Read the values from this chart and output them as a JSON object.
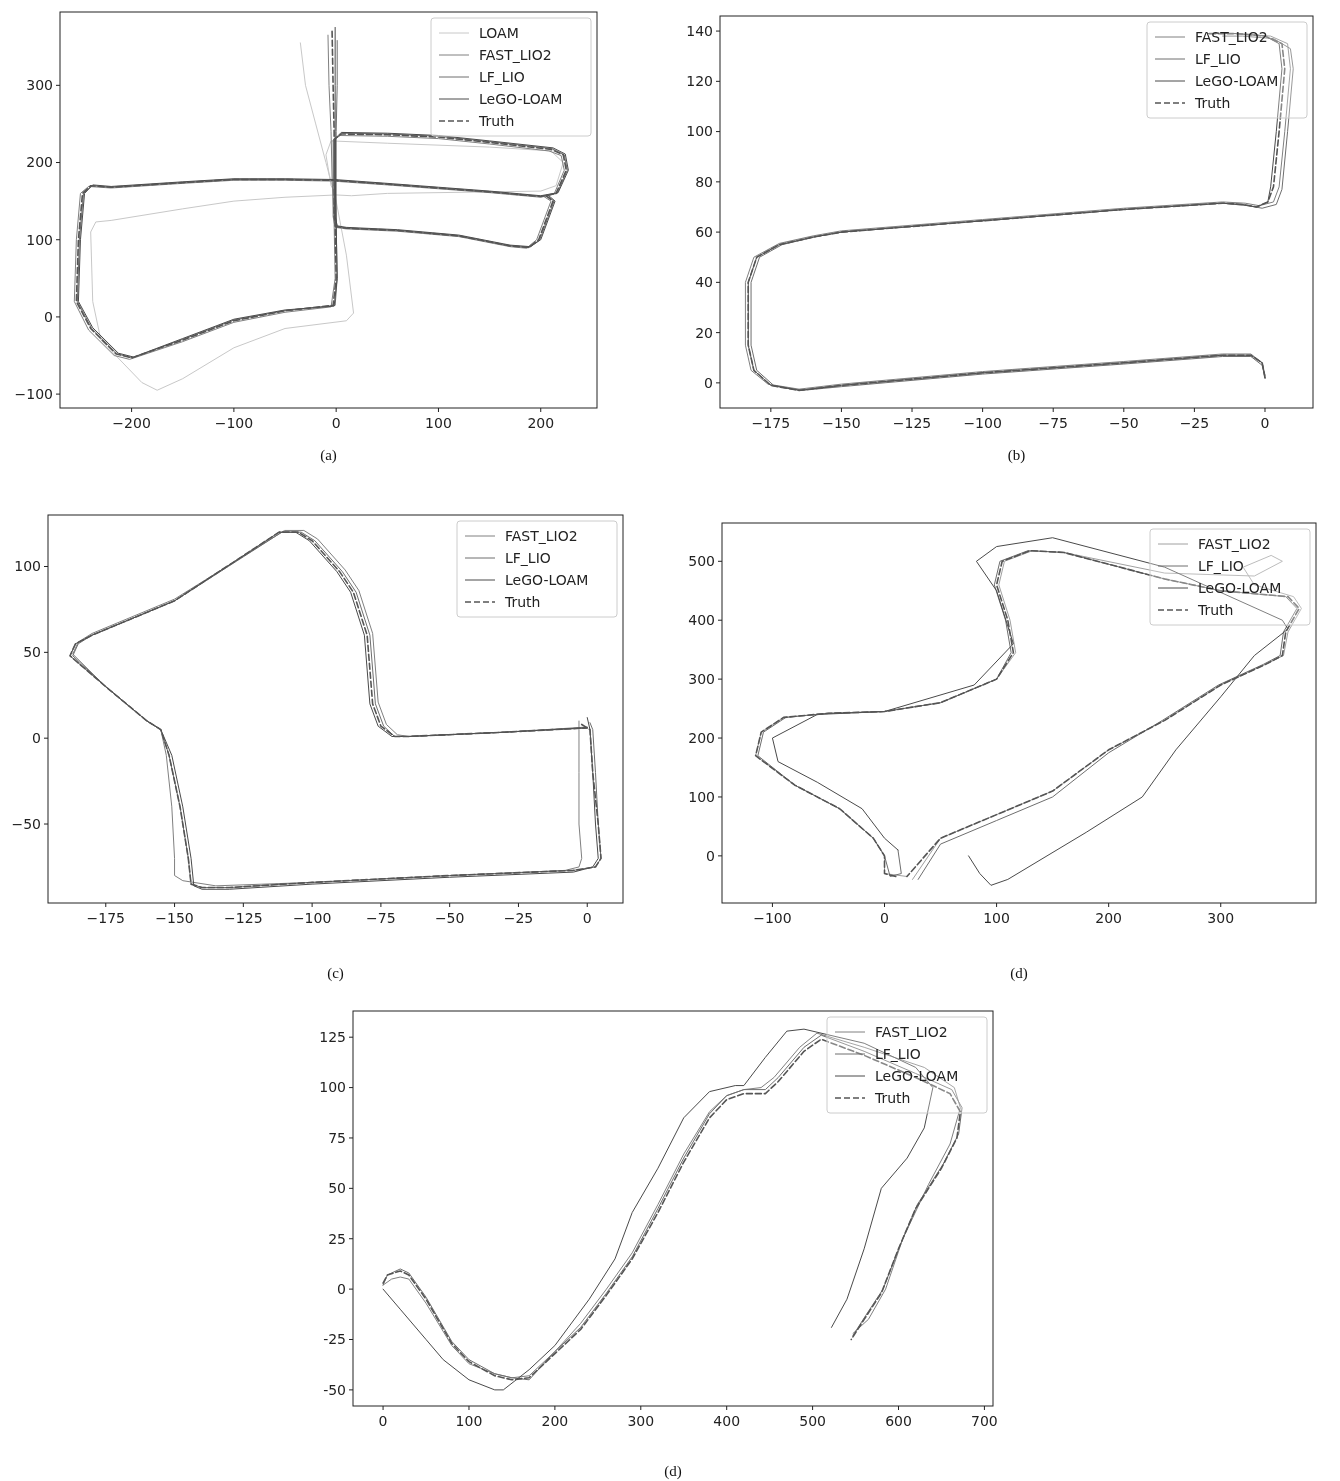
{
  "chart_data": [
    {
      "type": "line",
      "annotations": [
        "(a)"
      ],
      "legend": "top right",
      "xlim": [
        -270,
        255
      ],
      "ylim": [
        -118,
        395
      ],
      "xticks": [
        {
          "value": -200,
          "label": "−200"
        },
        {
          "value": -100,
          "label": "−100"
        },
        0,
        100,
        200
      ],
      "yticks": [
        {
          "value": -100,
          "label": "−100"
        },
        0,
        100,
        200,
        300
      ],
      "series": [
        {
          "name": "LOAM",
          "color": "#c8c8c8",
          "x": [
            -35,
            -30,
            -20,
            -10,
            0,
            10,
            17,
            10,
            -50,
            -100,
            -150,
            -175,
            -190,
            -230,
            -238,
            -240,
            -235,
            -220,
            -150,
            -100,
            -50,
            0,
            15,
            50,
            150,
            200,
            215,
            222,
            210,
            150,
            50,
            -5,
            -10,
            -5,
            0
          ],
          "values": [
            355,
            300,
            250,
            200,
            150,
            80,
            5,
            -5,
            -15,
            -40,
            -80,
            -95,
            -85,
            -30,
            20,
            110,
            123,
            125,
            140,
            150,
            155,
            158,
            157,
            160,
            162,
            163,
            170,
            200,
            215,
            220,
            225,
            228,
            210,
            170,
            158
          ]
        },
        {
          "name": "FAST_LIO2",
          "color": "#808080",
          "x": [
            -8,
            -7,
            -5,
            -4,
            -2,
            -1,
            -5,
            -50,
            -100,
            -150,
            -202,
            -217,
            -242,
            -256,
            -254,
            -250,
            -242,
            -220,
            -150,
            -100,
            -50,
            -4,
            50,
            100,
            150,
            200,
            213,
            223,
            220,
            208,
            150,
            100,
            50,
            4,
            -3,
            -3,
            -1,
            10,
            60,
            120,
            170,
            186,
            196,
            210,
            203
          ],
          "values": [
            365,
            300,
            240,
            180,
            120,
            50,
            13,
            6,
            -7,
            -32,
            -55,
            -50,
            -17,
            20,
            100,
            160,
            169,
            167,
            173,
            177,
            177,
            176,
            171,
            166,
            161,
            155,
            159,
            190,
            209,
            215,
            224,
            231,
            234,
            235,
            229,
            130,
            116,
            114,
            111,
            104,
            91,
            89,
            100,
            150,
            156
          ]
        },
        {
          "name": "LF_LIO",
          "color": "#6e6e6e",
          "x": [
            1,
            1,
            0,
            0,
            0,
            1,
            -1,
            -50,
            -100,
            -150,
            -199,
            -214,
            -239,
            -253,
            -251,
            -247,
            -239,
            -220,
            -150,
            -100,
            -50,
            -2,
            50,
            100,
            150,
            200,
            216,
            226,
            223,
            211,
            150,
            100,
            50,
            6,
            -1,
            -1,
            1,
            10,
            60,
            120,
            170,
            189,
            199,
            213,
            206
          ],
          "values": [
            358,
            300,
            240,
            180,
            120,
            50,
            15,
            8,
            -4,
            -29,
            -53,
            -48,
            -15,
            20,
            100,
            160,
            170,
            168,
            174,
            178,
            178,
            177,
            172,
            167,
            162,
            156,
            160,
            190,
            210,
            218,
            227,
            234,
            237,
            238,
            230,
            130,
            117,
            115,
            112,
            105,
            92,
            90,
            100,
            150,
            157
          ]
        },
        {
          "name": "LeGO-LOAM",
          "color": "#4a4a4a",
          "x": [
            -1,
            -1,
            -1,
            -1,
            0,
            1,
            -2,
            -50,
            -100,
            -150,
            -198,
            -213,
            -238,
            -252,
            -250,
            -246,
            -238,
            -220,
            -150,
            -100,
            -50,
            -2,
            50,
            100,
            150,
            200,
            217,
            227,
            224,
            212,
            150,
            100,
            50,
            5,
            -1,
            -1,
            1,
            10,
            60,
            120,
            170,
            190,
            200,
            214,
            207
          ],
          "values": [
            375,
            300,
            240,
            180,
            120,
            50,
            14,
            9,
            -3,
            -28,
            -52,
            -47,
            -14,
            20,
            100,
            160,
            171,
            169,
            175,
            179,
            179,
            178,
            173,
            168,
            163,
            157,
            161,
            190,
            211,
            219,
            228,
            235,
            238,
            239,
            231,
            130,
            118,
            116,
            113,
            106,
            93,
            91,
            100,
            150,
            158
          ]
        },
        {
          "name": "Truth",
          "color": "#555555",
          "line_style": "dashed",
          "x": [
            -4,
            -3,
            -2,
            -2,
            -1,
            0,
            -3,
            -50,
            -100,
            -150,
            -200,
            -215,
            -240,
            -254,
            -252,
            -248,
            -240,
            -220,
            -150,
            -100,
            -50,
            -3,
            50,
            100,
            150,
            200,
            215,
            225,
            222,
            210,
            150,
            100,
            50,
            5,
            -2,
            -2,
            0,
            10,
            60,
            120,
            170,
            188,
            198,
            212,
            205
          ],
          "values": [
            370,
            300,
            240,
            180,
            120,
            50,
            15,
            8,
            -5,
            -30,
            -53,
            -48,
            -15,
            20,
            100,
            160,
            170,
            168,
            174,
            178,
            178,
            177,
            172,
            167,
            162,
            156,
            160,
            190,
            210,
            217,
            226,
            233,
            236,
            237,
            230,
            130,
            117,
            115,
            112,
            105,
            92,
            90,
            100,
            150,
            157
          ]
        }
      ]
    },
    {
      "type": "line",
      "annotations": [
        "(b)"
      ],
      "legend": "top right",
      "xlim": [
        -193,
        17
      ],
      "ylim": [
        -10,
        146
      ],
      "xticks": [
        {
          "value": -175,
          "label": "−175"
        },
        {
          "value": -150,
          "label": "−150"
        },
        {
          "value": -125,
          "label": "−125"
        },
        {
          "value": -100,
          "label": "−100"
        },
        {
          "value": -75,
          "label": "−75"
        },
        {
          "value": -50,
          "label": "−50"
        },
        {
          "value": -25,
          "label": "−25"
        },
        0
      ],
      "yticks": [
        0,
        20,
        40,
        60,
        80,
        100,
        120,
        140
      ],
      "series": [
        {
          "name": "FAST_LIO2",
          "color": "#808080",
          "x": [
            0,
            -1,
            -5,
            -15,
            -50,
            -100,
            -150,
            -165,
            -176,
            -182,
            -184,
            -184,
            -181,
            -172,
            -160,
            -150,
            -100,
            -50,
            -15,
            -7,
            -2,
            3,
            5,
            7,
            9,
            8,
            2,
            -10,
            -20
          ],
          "values": [
            2,
            8,
            11.5,
            11.5,
            8.5,
            4.5,
            -0.5,
            -2.5,
            -0.5,
            5,
            15,
            40,
            50,
            55.5,
            58.5,
            60.5,
            65,
            69.5,
            72,
            71.5,
            70.5,
            72,
            78,
            100,
            125,
            135,
            138,
            139,
            139
          ]
        },
        {
          "name": "LF_LIO",
          "color": "#6e6e6e",
          "x": [
            0,
            -1,
            -5,
            -15,
            -50,
            -100,
            -150,
            -164,
            -174,
            -180,
            -182,
            -182,
            -179,
            -171,
            -160,
            -150,
            -100,
            -50,
            -15,
            -6,
            -1,
            4,
            6,
            8,
            10,
            9,
            3,
            -8,
            -15
          ],
          "values": [
            2,
            7,
            10.5,
            10.5,
            7.5,
            3.5,
            -1.5,
            -3,
            -1,
            5,
            15,
            40,
            50,
            55,
            58,
            60,
            64.5,
            69,
            71.5,
            70.5,
            69.5,
            71,
            77,
            100,
            125,
            133,
            137,
            138,
            138
          ]
        },
        {
          "name": "LeGO-LOAM",
          "color": "#4a4a4a",
          "x": [
            0,
            -1,
            -5,
            -15,
            -50,
            -100,
            -150,
            -165,
            -175,
            -181,
            -183,
            -183,
            -180,
            -172,
            -160,
            -150,
            -100,
            -50,
            -15,
            -8,
            -3,
            1,
            2,
            4,
            6,
            5,
            0,
            -10,
            -20
          ],
          "values": [
            3,
            8,
            11,
            11,
            8,
            4,
            -1,
            -3,
            -1,
            5,
            15,
            40,
            50,
            55,
            58,
            60,
            64.5,
            69,
            71.5,
            71,
            70,
            72,
            78,
            100,
            125,
            135,
            138,
            139,
            139
          ]
        },
        {
          "name": "Truth",
          "color": "#555555",
          "line_style": "dashed",
          "x": [
            0,
            -1,
            -5,
            -15,
            -50,
            -100,
            -150,
            -165,
            -175,
            -181,
            -183,
            -183,
            -180,
            -172,
            -160,
            -150,
            -100,
            -50,
            -15,
            -8,
            -3,
            1,
            3,
            5,
            7,
            6,
            0,
            -10,
            -20
          ],
          "values": [
            2,
            8,
            11,
            11,
            8,
            4,
            -1,
            -3,
            -1,
            5,
            15,
            40,
            50,
            55,
            58,
            60,
            64.5,
            69,
            71.5,
            71,
            70,
            72,
            78,
            100,
            125,
            135,
            138,
            139,
            139
          ]
        }
      ]
    },
    {
      "type": "line",
      "annotations": [
        "(c)"
      ],
      "legend": "top right",
      "xlim": [
        -196,
        13
      ],
      "ylim": [
        -96,
        130
      ],
      "xticks": [
        {
          "value": -175,
          "label": "−175"
        },
        {
          "value": -150,
          "label": "−150"
        },
        {
          "value": -125,
          "label": "−125"
        },
        {
          "value": -100,
          "label": "−100"
        },
        {
          "value": -75,
          "label": "−75"
        },
        {
          "value": -50,
          "label": "−50"
        },
        {
          "value": -25,
          "label": "−25"
        },
        0
      ],
      "yticks": [
        {
          "value": -50,
          "label": "−50"
        },
        0,
        50,
        100
      ],
      "series": [
        {
          "name": "FAST_LIO2",
          "color": "#808080",
          "x": [
            -3,
            -3,
            -3,
            -3,
            -2,
            -3,
            -8,
            -50,
            -100,
            -135,
            -147,
            -150,
            -150,
            -151,
            -153,
            -155,
            -160,
            -175,
            -187,
            -185,
            -180,
            -150,
            -110,
            -103,
            -98,
            -88,
            -83,
            -78,
            -76,
            -73,
            -69,
            -65,
            -30,
            0
          ],
          "values": [
            10,
            5,
            -20,
            -50,
            -70,
            -75,
            -77,
            -80,
            -84,
            -86,
            -83,
            -80,
            -70,
            -40,
            -10,
            5,
            10,
            30,
            49,
            56,
            61,
            81,
            121,
            121,
            116,
            98,
            86,
            61,
            21,
            8,
            2,
            1,
            3.5,
            6
          ]
        },
        {
          "name": "LF_LIO",
          "color": "#6e6e6e",
          "x": [
            1,
            2,
            3,
            4,
            5,
            3,
            -5,
            -50,
            -100,
            -130,
            -140,
            -144,
            -145,
            -148,
            -152,
            -155,
            -160,
            -175,
            -187,
            -185,
            -180,
            -150,
            -111,
            -104,
            -99,
            -89,
            -84,
            -79,
            -77,
            -74,
            -70,
            -65,
            -30,
            0
          ],
          "values": [
            9,
            5,
            -20,
            -50,
            -70,
            -75,
            -77,
            -80,
            -84,
            -87,
            -87,
            -85,
            -70,
            -40,
            -10,
            5,
            10,
            30,
            48,
            55,
            60,
            80,
            120,
            120,
            115,
            97,
            85,
            60,
            20,
            7,
            1,
            1,
            3.5,
            6.5
          ]
        },
        {
          "name": "LeGO-LOAM",
          "color": "#4a4a4a",
          "x": [
            0,
            1,
            2,
            3,
            4,
            2,
            -5,
            -50,
            -100,
            -130,
            -140,
            -143,
            -144,
            -147,
            -151,
            -155,
            -160,
            -175,
            -188,
            -186,
            -180,
            -150,
            -112,
            -106,
            -101,
            -91,
            -86,
            -81,
            -79,
            -76,
            -71,
            -65,
            -30,
            0
          ],
          "values": [
            12,
            5,
            -20,
            -50,
            -70,
            -75,
            -78,
            -81,
            -85,
            -88,
            -88,
            -86,
            -70,
            -40,
            -10,
            5,
            10,
            30,
            48,
            55,
            60,
            80,
            120,
            120,
            115,
            97,
            85,
            60,
            20,
            7,
            1,
            1,
            3.5,
            6
          ]
        },
        {
          "name": "Truth",
          "color": "#555555",
          "line_style": "dashed",
          "x": [
            -2,
            1,
            2,
            4,
            5,
            3,
            -5,
            -50,
            -100,
            -130,
            -140,
            -144,
            -145,
            -148,
            -152,
            -155,
            -160,
            -175,
            -188,
            -186,
            -180,
            -150,
            -112,
            -105,
            -100,
            -90,
            -85,
            -80,
            -78,
            -75,
            -70,
            -65,
            -30,
            0
          ],
          "values": [
            8,
            5,
            -20,
            -50,
            -70,
            -75,
            -77,
            -80,
            -84,
            -87,
            -87,
            -85,
            -70,
            -40,
            -10,
            5,
            10,
            30,
            48,
            55,
            60,
            80,
            120,
            120,
            115,
            97,
            85,
            60,
            20,
            7,
            1,
            1,
            3.5,
            6
          ]
        }
      ]
    },
    {
      "type": "line",
      "annotations": [
        "(d)"
      ],
      "legend": "top right",
      "xlim": [
        -145,
        385
      ],
      "ylim": [
        -80,
        565
      ],
      "xticks": [
        {
          "value": -100,
          "label": "−100"
        },
        0,
        100,
        200,
        300
      ],
      "yticks": [
        0,
        100,
        200,
        300,
        400,
        500
      ],
      "series": [
        {
          "name": "FAST_LIO2",
          "color": "#a0a0a0",
          "x": [
            20,
            0,
            0,
            -10,
            -40,
            -80,
            -115,
            -110,
            -90,
            -50,
            0,
            50,
            100,
            117,
            112,
            102,
            107,
            132,
            160,
            250,
            330,
            355,
            345,
            320,
            330,
            365,
            372,
            360,
            356,
            340,
            300,
            250,
            200,
            150,
            100,
            50,
            25
          ],
          "values": [
            -35,
            -30,
            0,
            30,
            80,
            120,
            170,
            210,
            235,
            242,
            245,
            260,
            300,
            345,
            400,
            460,
            500,
            518,
            515,
            480,
            475,
            500,
            510,
            490,
            460,
            440,
            420,
            380,
            340,
            325,
            290,
            230,
            180,
            110,
            70,
            30,
            -40
          ]
        },
        {
          "name": "LF_LIO",
          "color": "#6e6e6e",
          "x": [
            12,
            15,
            5,
            0,
            -10,
            -40,
            -80,
            -113,
            -108,
            -88,
            -50,
            0,
            50,
            100,
            113,
            108,
            98,
            103,
            128,
            160,
            250,
            300,
            358,
            368,
            356,
            353,
            338,
            298,
            248,
            200,
            150,
            100,
            50,
            30
          ],
          "values": [
            10,
            -30,
            -35,
            0,
            30,
            80,
            120,
            170,
            210,
            235,
            242,
            245,
            260,
            300,
            345,
            400,
            460,
            500,
            518,
            515,
            470,
            450,
            440,
            420,
            380,
            340,
            325,
            290,
            230,
            175,
            100,
            60,
            20,
            -40
          ]
        },
        {
          "name": "LeGO-LOAM",
          "color": "#4a4a4a",
          "x": [
            75,
            85,
            95,
            110,
            180,
            230,
            260,
            300,
            330,
            360,
            355,
            250,
            150,
            100,
            82,
            100,
            115,
            80,
            0,
            -60,
            -100,
            -95,
            -60,
            -20,
            0,
            12
          ],
          "values": [
            0,
            -30,
            -50,
            -40,
            40,
            100,
            180,
            270,
            340,
            385,
            400,
            490,
            540,
            525,
            500,
            450,
            360,
            290,
            245,
            240,
            200,
            160,
            125,
            80,
            30,
            10
          ]
        },
        {
          "name": "Truth",
          "color": "#555555",
          "line_style": "dashed",
          "x": [
            10,
            0,
            0,
            -10,
            -40,
            -80,
            -115,
            -110,
            -90,
            -50,
            0,
            50,
            100,
            115,
            110,
            100,
            105,
            130,
            160,
            250,
            300,
            360,
            370,
            358,
            355,
            340,
            300,
            250,
            200,
            150,
            100,
            50,
            20
          ],
          "values": [
            -35,
            -30,
            0,
            30,
            80,
            120,
            170,
            210,
            235,
            242,
            245,
            260,
            300,
            345,
            400,
            460,
            500,
            518,
            515,
            470,
            450,
            440,
            420,
            380,
            340,
            325,
            290,
            230,
            180,
            110,
            70,
            30,
            -35
          ]
        }
      ]
    },
    {
      "type": "line",
      "annotations": [
        "(d)"
      ],
      "legend": "top right",
      "xlim": [
        -35,
        710
      ],
      "ylim": [
        -58,
        138
      ],
      "xticks": [
        0,
        100,
        200,
        300,
        400,
        500,
        600,
        700
      ],
      "yticks": [
        -50,
        -25,
        0,
        25,
        50,
        75,
        100,
        125
      ],
      "series": [
        {
          "name": "FAST_LIO2",
          "color": "#808080",
          "x": [
            0,
            10,
            20,
            30,
            50,
            80,
            100,
            130,
            150,
            170,
            200,
            230,
            260,
            290,
            320,
            350,
            380,
            400,
            420,
            440,
            455,
            485,
            505,
            560,
            630,
            665,
            672,
            660,
            635,
            605,
            585,
            565,
            547
          ],
          "values": [
            2,
            5,
            6,
            5,
            -7,
            -28,
            -37,
            -42,
            -44,
            -43,
            -31,
            -17,
            0,
            18,
            42,
            67,
            88,
            96,
            99,
            100,
            105,
            120,
            127,
            120,
            110,
            100,
            90,
            72,
            52,
            25,
            0,
            -15,
            -22
          ]
        },
        {
          "name": "LF_LIO",
          "color": "#6e6e6e",
          "x": [
            0,
            5,
            20,
            30,
            50,
            80,
            100,
            130,
            150,
            170,
            200,
            230,
            260,
            290,
            320,
            350,
            380,
            400,
            420,
            445,
            460,
            490,
            510,
            560,
            620,
            662,
            674,
            670,
            652,
            622,
            602,
            582,
            562,
            547
          ],
          "values": [
            2,
            7,
            10,
            8,
            -4,
            -26,
            -35,
            -42,
            -44,
            -45,
            -31,
            -19,
            -2,
            16,
            40,
            65,
            87,
            96,
            99,
            99,
            105,
            120,
            126,
            118,
            107,
            99,
            90,
            77,
            62,
            42,
            22,
            0,
            -13,
            -23
          ]
        },
        {
          "name": "LeGO-LOAM",
          "color": "#4a4a4a",
          "x": [
            0,
            20,
            50,
            70,
            100,
            130,
            140,
            170,
            200,
            240,
            270,
            290,
            320,
            350,
            380,
            410,
            420,
            445,
            470,
            490,
            560,
            620,
            640,
            630,
            610,
            580,
            560,
            540,
            522
          ],
          "values": [
            0,
            -10,
            -25,
            -35,
            -45,
            -50,
            -50,
            -40,
            -28,
            -5,
            15,
            38,
            60,
            85,
            98,
            101,
            101,
            115,
            128,
            129,
            122,
            110,
            100,
            80,
            65,
            50,
            20,
            -5,
            -19
          ]
        },
        {
          "name": "Truth",
          "color": "#555555",
          "line_style": "dashed",
          "x": [
            0,
            5,
            20,
            30,
            50,
            80,
            100,
            130,
            150,
            170,
            200,
            230,
            260,
            290,
            320,
            350,
            380,
            400,
            420,
            445,
            460,
            490,
            510,
            560,
            620,
            660,
            672,
            668,
            650,
            620,
            600,
            580,
            560,
            545
          ],
          "values": [
            3,
            7,
            9,
            7,
            -5,
            -27,
            -36,
            -43,
            -45,
            -44,
            -32,
            -20,
            -3,
            15,
            38,
            63,
            85,
            94,
            97,
            97,
            103,
            118,
            124,
            116,
            105,
            97,
            88,
            75,
            60,
            40,
            20,
            -2,
            -15,
            -25
          ]
        }
      ]
    }
  ]
}
